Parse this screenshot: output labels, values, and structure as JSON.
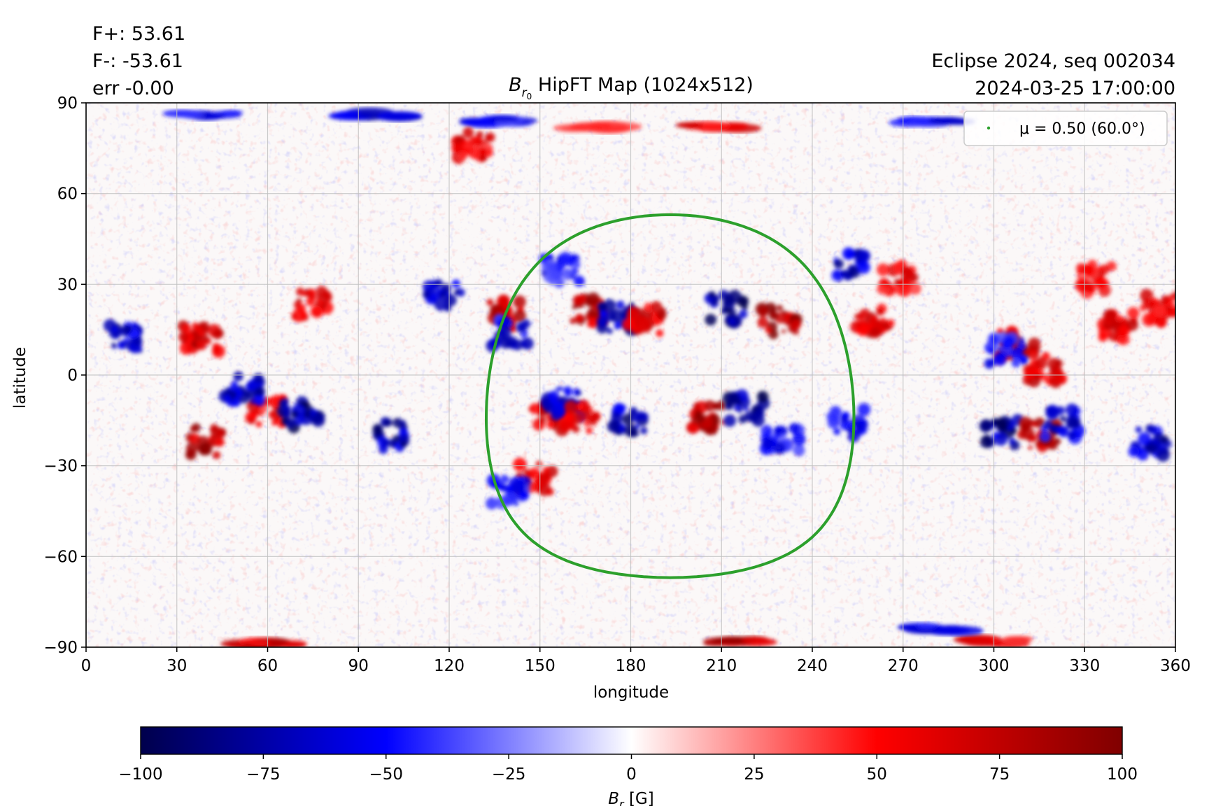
{
  "stats": {
    "fplus": "F+: 53.61",
    "fminus": "F-: -53.61",
    "err": "err -0.00"
  },
  "header_right": {
    "line1": "Eclipse 2024, seq 002034",
    "line2": "2024-03-25 17:00:00"
  },
  "chart_data": {
    "type": "heatmap",
    "title": "HipFT Map (1024x512)",
    "title_symbol": "B",
    "title_symbol_sub": "r",
    "title_symbol_subsub": "0",
    "xlabel": "longitude",
    "ylabel": "latitude",
    "xlim": [
      0,
      360
    ],
    "ylim": [
      -90,
      90
    ],
    "xticks": [
      0,
      30,
      60,
      90,
      120,
      150,
      180,
      210,
      240,
      270,
      300,
      330,
      360
    ],
    "yticks": [
      -90,
      -60,
      -30,
      0,
      30,
      60,
      90
    ],
    "grid": true,
    "legend": {
      "placement": "top-right",
      "label": "μ = 0.50 (60.0°)",
      "color": "#2ca02c"
    },
    "mu_contour": {
      "mu": 0.5,
      "angle_deg": 60.0,
      "center_lon": 193,
      "center_lat": -7,
      "color": "#2ca02c"
    },
    "colorbar": {
      "range": [
        -100,
        100
      ],
      "ticks": [
        -100,
        -75,
        -50,
        -25,
        0,
        25,
        50,
        75,
        100
      ],
      "tick_labels": [
        "−100",
        "−75",
        "−50",
        "−25",
        "0",
        "25",
        "50",
        "75",
        "100"
      ],
      "label_symbol": "B",
      "label_sub": "r",
      "label_unit": "[G]",
      "cmap": "seismic",
      "colors": [
        "#00004c",
        "#0000ff",
        "#ffffff",
        "#ff0000",
        "#800000"
      ]
    },
    "active_regions": [
      {
        "lon": 38,
        "lat": 12,
        "value": 90
      },
      {
        "lon": 12,
        "lat": 12,
        "value": -80
      },
      {
        "lon": 40,
        "lat": -22,
        "value": 95
      },
      {
        "lon": 60,
        "lat": -12,
        "value": 70
      },
      {
        "lon": 71,
        "lat": -13,
        "value": -95
      },
      {
        "lon": 52,
        "lat": -5,
        "value": -80
      },
      {
        "lon": 74,
        "lat": 23,
        "value": 80
      },
      {
        "lon": 100,
        "lat": -20,
        "value": -90
      },
      {
        "lon": 118,
        "lat": 26,
        "value": -80
      },
      {
        "lon": 138,
        "lat": 20,
        "value": 85
      },
      {
        "lon": 140,
        "lat": 14,
        "value": -70
      },
      {
        "lon": 166,
        "lat": 21,
        "value": 90
      },
      {
        "lon": 176,
        "lat": 19,
        "value": -90
      },
      {
        "lon": 185,
        "lat": 18,
        "value": 80
      },
      {
        "lon": 212,
        "lat": 22,
        "value": -100
      },
      {
        "lon": 229,
        "lat": 18,
        "value": 100
      },
      {
        "lon": 153,
        "lat": -13,
        "value": 80
      },
      {
        "lon": 158,
        "lat": -9,
        "value": -70
      },
      {
        "lon": 163,
        "lat": -14,
        "value": 70
      },
      {
        "lon": 180,
        "lat": -15,
        "value": -90
      },
      {
        "lon": 205,
        "lat": -14,
        "value": 100
      },
      {
        "lon": 218,
        "lat": -11,
        "value": -100
      },
      {
        "lon": 148,
        "lat": -34,
        "value": 70
      },
      {
        "lon": 140,
        "lat": -38,
        "value": -60
      },
      {
        "lon": 260,
        "lat": 18,
        "value": 80
      },
      {
        "lon": 253,
        "lat": 36,
        "value": -80
      },
      {
        "lon": 268,
        "lat": 32,
        "value": 70
      },
      {
        "lon": 308,
        "lat": 10,
        "value": 80
      },
      {
        "lon": 304,
        "lat": 8,
        "value": -60
      },
      {
        "lon": 317,
        "lat": 2,
        "value": 75
      },
      {
        "lon": 303,
        "lat": -19,
        "value": -95
      },
      {
        "lon": 315,
        "lat": -20,
        "value": 90
      },
      {
        "lon": 322,
        "lat": -16,
        "value": -80
      },
      {
        "lon": 342,
        "lat": 16,
        "value": 75
      },
      {
        "lon": 355,
        "lat": 22,
        "value": 70
      },
      {
        "lon": 352,
        "lat": -22,
        "value": -85
      },
      {
        "lon": 334,
        "lat": 32,
        "value": 65
      },
      {
        "lon": 157,
        "lat": 35,
        "value": -60
      },
      {
        "lon": 252,
        "lat": -16,
        "value": -65
      },
      {
        "lon": 230,
        "lat": -22,
        "value": -60
      },
      {
        "lon": 40,
        "lat": 86,
        "value": -70
      },
      {
        "lon": 96,
        "lat": 86,
        "value": -80
      },
      {
        "lon": 135,
        "lat": 84,
        "value": -60
      },
      {
        "lon": 280,
        "lat": 84,
        "value": -70
      },
      {
        "lon": 128,
        "lat": 76,
        "value": 70
      },
      {
        "lon": 168,
        "lat": 82,
        "value": 60
      },
      {
        "lon": 207,
        "lat": 82,
        "value": 70
      },
      {
        "lon": 215,
        "lat": -88,
        "value": 95
      },
      {
        "lon": 60,
        "lat": -89,
        "value": 80
      },
      {
        "lon": 300,
        "lat": -88,
        "value": 70
      },
      {
        "lon": 280,
        "lat": -84,
        "value": -70
      }
    ]
  }
}
